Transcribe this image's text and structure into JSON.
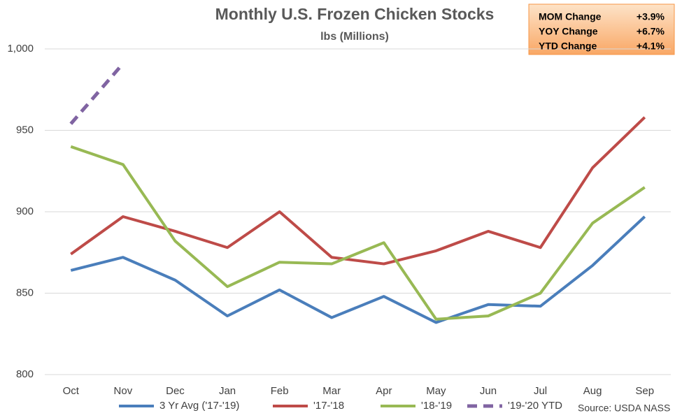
{
  "chart_data": {
    "type": "line",
    "title": "Monthly U.S. Frozen Chicken Stocks",
    "subtitle": "lbs (Millions)",
    "categories": [
      "Oct",
      "Nov",
      "Dec",
      "Jan",
      "Feb",
      "Mar",
      "Apr",
      "May",
      "Jun",
      "Jul",
      "Aug",
      "Sep"
    ],
    "series": [
      {
        "name": "3 Yr Avg ('17-'19)",
        "color": "#4a7ebb",
        "values": [
          864,
          872,
          858,
          836,
          852,
          835,
          848,
          832,
          843,
          842,
          867,
          897
        ]
      },
      {
        "name": "'17-'18",
        "color": "#be4b48",
        "values": [
          874,
          897,
          888,
          878,
          900,
          872,
          868,
          876,
          888,
          878,
          927,
          958
        ]
      },
      {
        "name": "'18-'19",
        "color": "#98b954",
        "values": [
          940,
          929,
          882,
          854,
          869,
          868,
          881,
          834,
          836,
          850,
          893,
          915
        ]
      },
      {
        "name": "'19-'20 YTD",
        "color": "#8064a2",
        "dashed": true,
        "values": [
          954,
          991,
          null,
          null,
          null,
          null,
          null,
          null,
          null,
          null,
          null,
          null
        ]
      }
    ],
    "ylim": [
      800,
      1000
    ],
    "yticks": [
      800,
      850,
      900,
      950,
      {
        "value": 1000,
        "label": "1,000"
      }
    ],
    "grid": true,
    "annotations": [
      {
        "label": "MOM Change",
        "value": "+3.9%"
      },
      {
        "label": "YOY Change",
        "value": "+6.7%"
      },
      {
        "label": "YTD Change",
        "value": "+4.1%"
      }
    ],
    "source": "Source: USDA NASS"
  }
}
